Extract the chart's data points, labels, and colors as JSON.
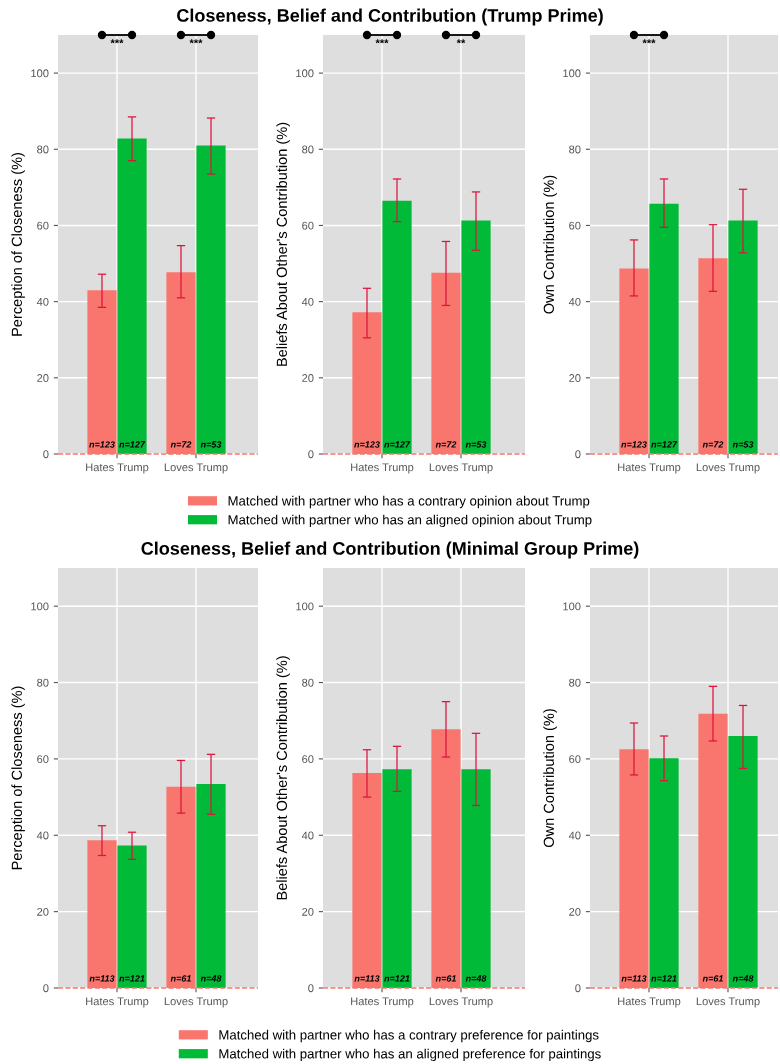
{
  "chart_data": [
    {
      "type": "bar",
      "title": "Closeness, Belief and Contribution (Trump Prime)",
      "ylabel": "Perception of Closeness (%)",
      "categories": [
        "Hates Trump",
        "Loves Trump"
      ],
      "ylim": [
        0,
        110
      ],
      "yticks": [
        0,
        20,
        40,
        60,
        80,
        100
      ],
      "grid": true,
      "legend": "bottom",
      "series": [
        {
          "name": "Matched with partner who has a contrary opinion about Trump",
          "color": "#f8766d",
          "values": [
            43.0,
            47.7
          ],
          "errors": [
            [
              38.5,
              47.2
            ],
            [
              41.0,
              54.7
            ]
          ]
        },
        {
          "name": "Matched with partner who has an aligned opinion about Trump",
          "color": "#00ba38",
          "values": [
            82.8,
            81.0
          ],
          "errors": [
            [
              77.0,
              88.5
            ],
            [
              73.5,
              88.2
            ]
          ]
        }
      ],
      "annotations": [
        "n=123",
        "n=127",
        "n=72",
        "n=53",
        "***",
        "***"
      ],
      "ref_lines": [
        {
          "axis": "y",
          "value": 0,
          "color": "#f8766d",
          "line_style": "dashed"
        }
      ]
    },
    {
      "type": "bar",
      "ylabel": "Beliefs About Other's Contribution (%)",
      "categories": [
        "Hates Trump",
        "Loves Trump"
      ],
      "ylim": [
        0,
        110
      ],
      "yticks": [
        0,
        20,
        40,
        60,
        80,
        100
      ],
      "grid": true,
      "series": [
        {
          "color": "#f8766d",
          "values": [
            37.2,
            47.6
          ],
          "errors": [
            [
              30.5,
              43.5
            ],
            [
              39.0,
              55.8
            ]
          ]
        },
        {
          "color": "#00ba38",
          "values": [
            66.5,
            61.3
          ],
          "errors": [
            [
              61.0,
              72.2
            ],
            [
              53.5,
              68.8
            ]
          ]
        }
      ],
      "annotations": [
        "n=123",
        "n=127",
        "n=72",
        "n=53",
        "***",
        "**"
      ],
      "ref_lines": [
        {
          "axis": "y",
          "value": 0,
          "color": "#f8766d",
          "line_style": "dashed"
        }
      ]
    },
    {
      "type": "bar",
      "ylabel": "Own Contribution (%)",
      "categories": [
        "Hates Trump",
        "Loves Trump"
      ],
      "ylim": [
        0,
        110
      ],
      "yticks": [
        0,
        20,
        40,
        60,
        80,
        100
      ],
      "grid": true,
      "series": [
        {
          "color": "#f8766d",
          "values": [
            48.7,
            51.4
          ],
          "errors": [
            [
              41.5,
              56.2
            ],
            [
              42.7,
              60.2
            ]
          ]
        },
        {
          "color": "#00ba38",
          "values": [
            65.7,
            61.3
          ],
          "errors": [
            [
              59.5,
              72.2
            ],
            [
              52.8,
              69.5
            ]
          ]
        }
      ],
      "annotations": [
        "n=123",
        "n=127",
        "n=72",
        "n=53",
        "***"
      ],
      "ref_lines": [
        {
          "axis": "y",
          "value": 0,
          "color": "#f8766d",
          "line_style": "dashed"
        }
      ]
    },
    {
      "type": "bar",
      "title": "Closeness, Belief and Contribution (Minimal Group Prime)",
      "ylabel": "Perception of Closeness (%)",
      "categories": [
        "Hates Trump",
        "Loves Trump"
      ],
      "ylim": [
        0,
        110
      ],
      "yticks": [
        0,
        20,
        40,
        60,
        80,
        100
      ],
      "grid": true,
      "legend": "bottom",
      "series": [
        {
          "name": "Matched with partner who has a contrary preference for paintings",
          "color": "#f8766d",
          "values": [
            38.7,
            52.7
          ],
          "errors": [
            [
              34.7,
              42.5
            ],
            [
              45.8,
              59.6
            ]
          ]
        },
        {
          "name": "Matched with partner who has an aligned preference for paintings",
          "color": "#00ba38",
          "values": [
            37.3,
            53.4
          ],
          "errors": [
            [
              33.7,
              40.8
            ],
            [
              45.5,
              61.2
            ]
          ]
        }
      ],
      "annotations": [
        "n=113",
        "n=121",
        "n=61",
        "n=48"
      ],
      "ref_lines": [
        {
          "axis": "y",
          "value": 0,
          "color": "#f8766d",
          "line_style": "dashed"
        }
      ]
    },
    {
      "type": "bar",
      "ylabel": "Beliefs About Other's Contribution (%)",
      "categories": [
        "Hates Trump",
        "Loves Trump"
      ],
      "ylim": [
        0,
        110
      ],
      "yticks": [
        0,
        20,
        40,
        60,
        80,
        100
      ],
      "grid": true,
      "series": [
        {
          "color": "#f8766d",
          "values": [
            56.3,
            67.8
          ],
          "errors": [
            [
              50.0,
              62.4
            ],
            [
              60.5,
              75.0
            ]
          ]
        },
        {
          "color": "#00ba38",
          "values": [
            57.3,
            57.3
          ],
          "errors": [
            [
              51.5,
              63.3
            ],
            [
              47.8,
              66.7
            ]
          ]
        }
      ],
      "annotations": [
        "n=113",
        "n=121",
        "n=61",
        "n=48"
      ],
      "ref_lines": [
        {
          "axis": "y",
          "value": 0,
          "color": "#f8766d",
          "line_style": "dashed"
        }
      ]
    },
    {
      "type": "bar",
      "ylabel": "Own Contribution (%)",
      "categories": [
        "Hates Trump",
        "Loves Trump"
      ],
      "ylim": [
        0,
        110
      ],
      "yticks": [
        0,
        20,
        40,
        60,
        80,
        100
      ],
      "grid": true,
      "series": [
        {
          "color": "#f8766d",
          "values": [
            62.5,
            71.8
          ],
          "errors": [
            [
              55.8,
              69.4
            ],
            [
              64.7,
              79.0
            ]
          ]
        },
        {
          "color": "#00ba38",
          "values": [
            60.2,
            66.0
          ],
          "errors": [
            [
              54.3,
              66.0
            ],
            [
              57.5,
              74.0
            ]
          ]
        }
      ],
      "annotations": [
        "n=113",
        "n=121",
        "n=61",
        "n=48"
      ],
      "ref_lines": [
        {
          "axis": "y",
          "value": 0,
          "color": "#f8766d",
          "line_style": "dashed"
        }
      ]
    }
  ]
}
